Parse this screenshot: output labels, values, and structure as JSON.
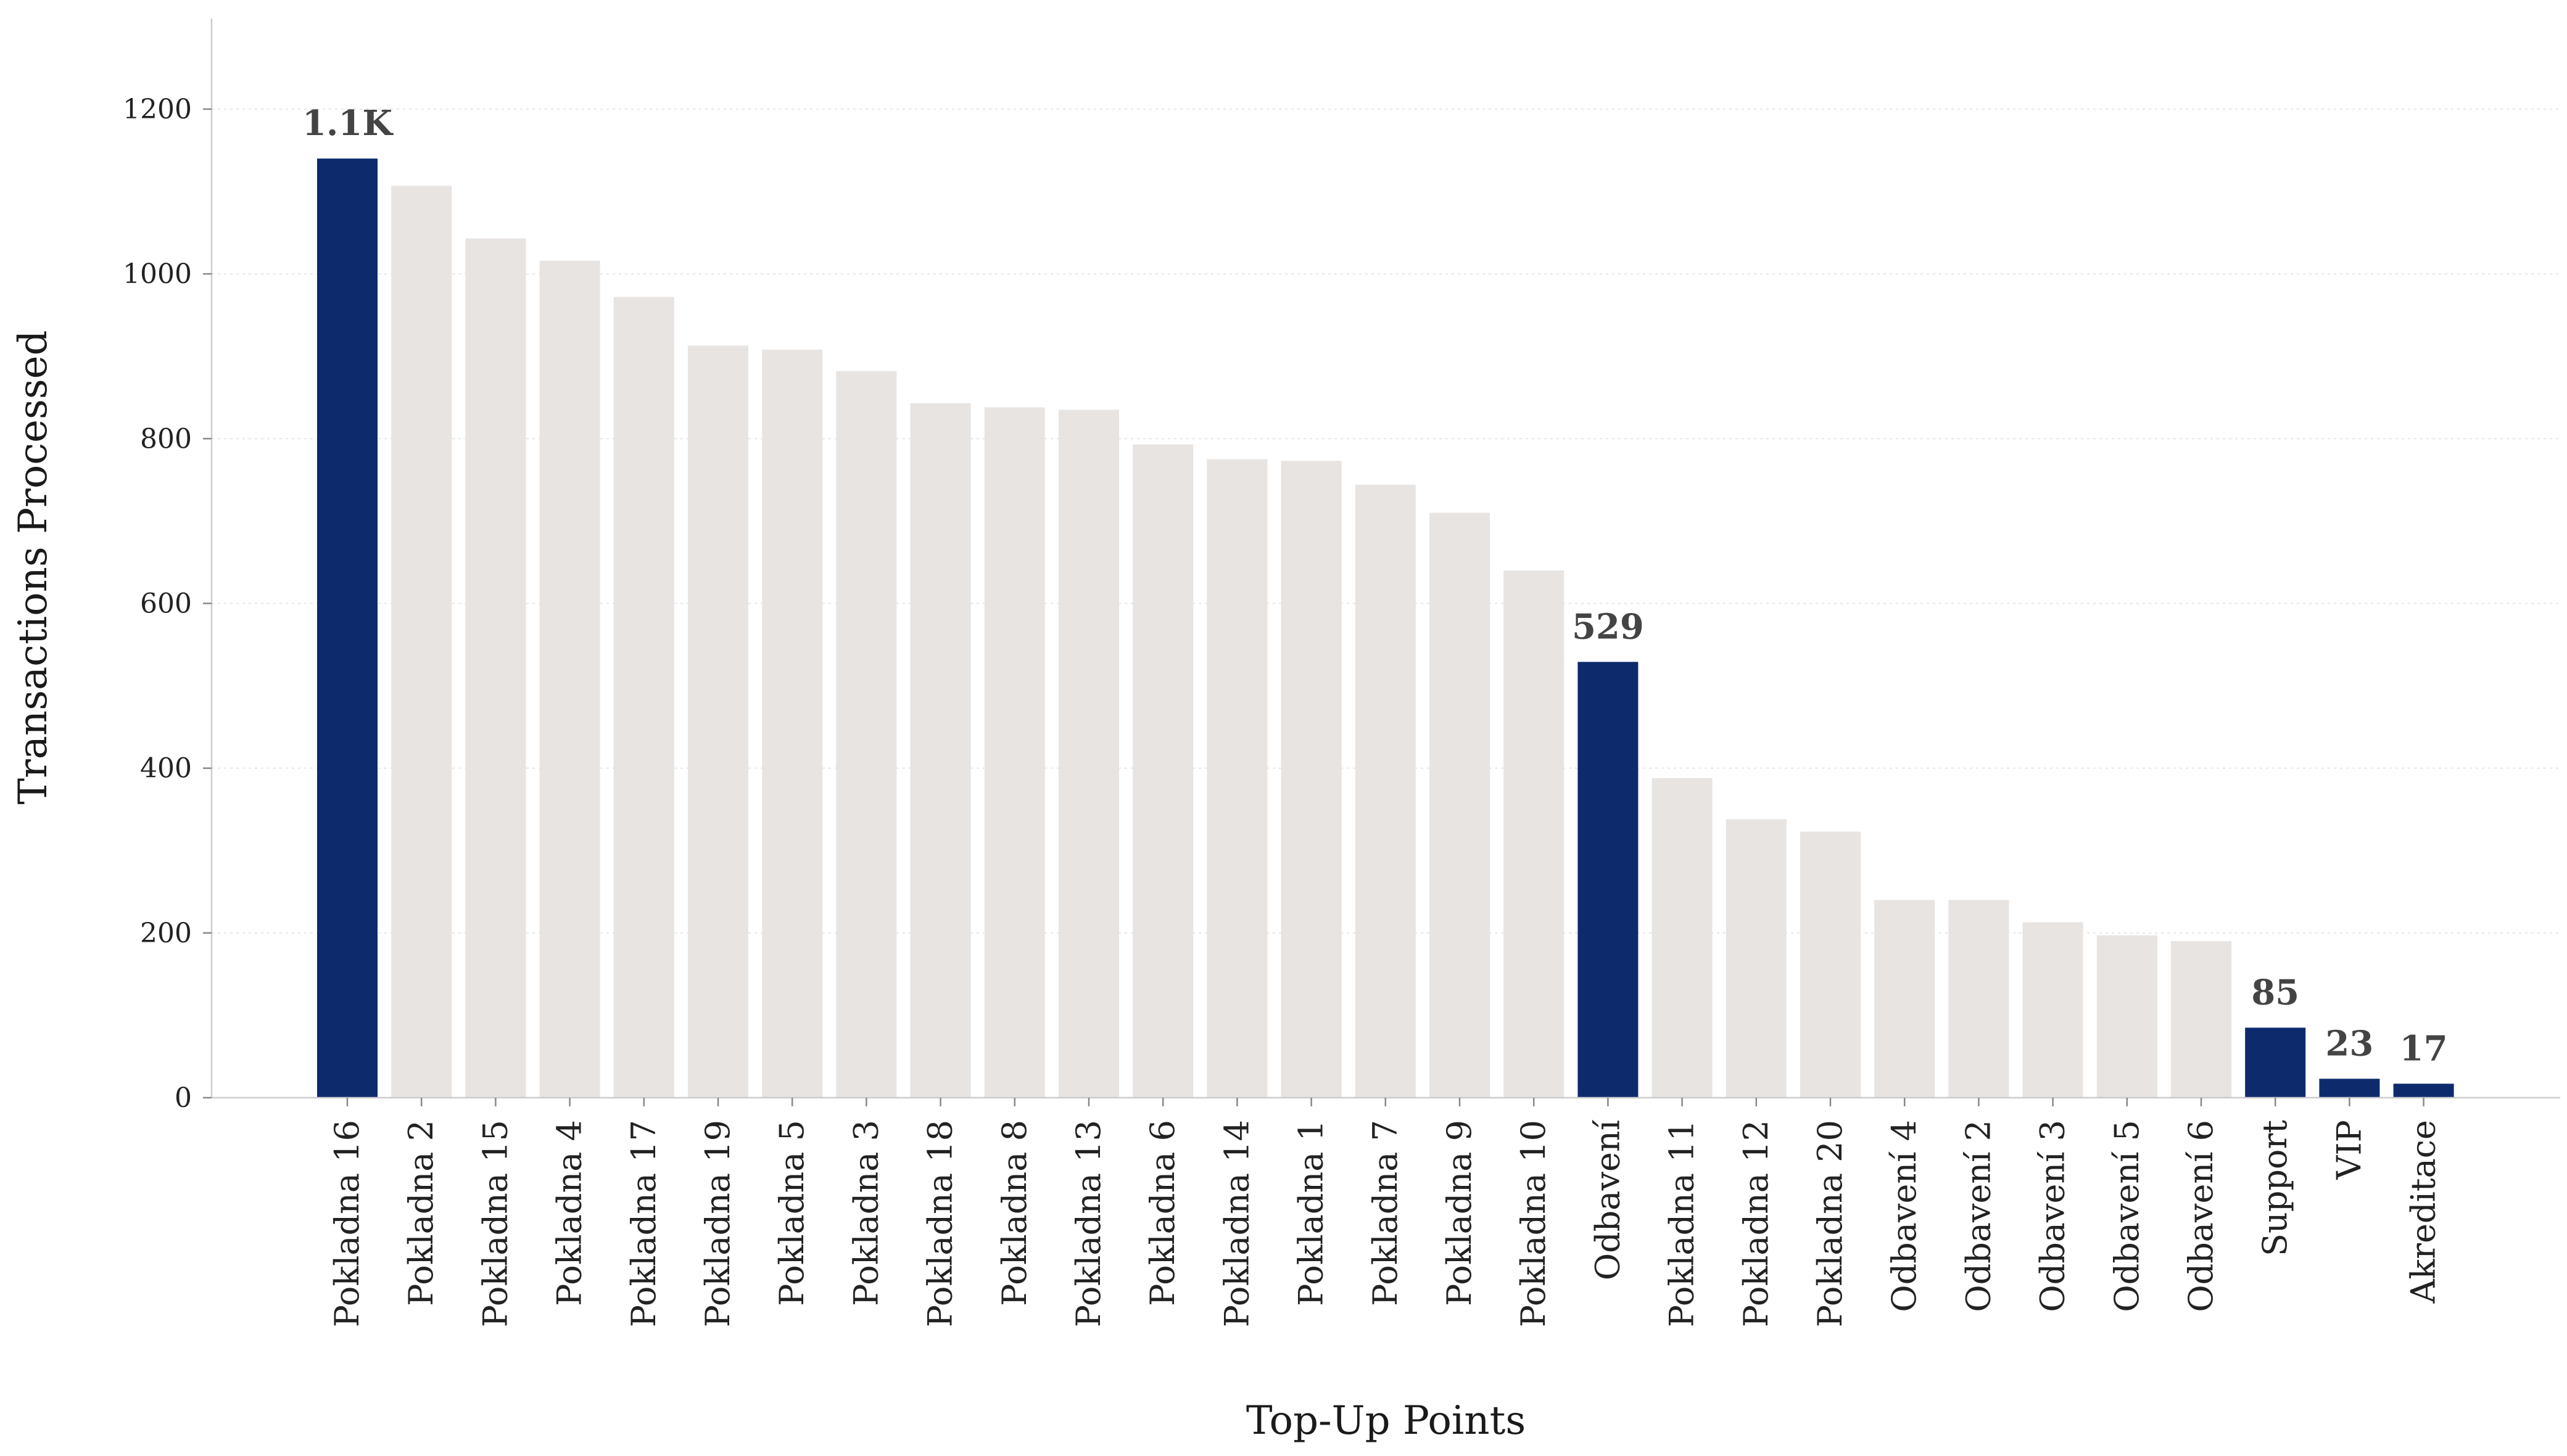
{
  "chart_data": {
    "type": "bar",
    "xlabel": "Top-Up Points",
    "ylabel": "Transactions Processed",
    "ylim": [
      0,
      1310
    ],
    "yticks": [
      0,
      200,
      400,
      600,
      800,
      1000,
      1200
    ],
    "grid": "y-horizontal-dotted",
    "categories": [
      "Pokladna 16",
      "Pokladna 2",
      "Pokladna 15",
      "Pokladna 4",
      "Pokladna 17",
      "Pokladna 19",
      "Pokladna 5",
      "Pokladna 3",
      "Pokladna 18",
      "Pokladna 8",
      "Pokladna 13",
      "Pokladna 6",
      "Pokladna 14",
      "Pokladna 1",
      "Pokladna 7",
      "Pokladna 9",
      "Pokladna 10",
      "Odbavení",
      "Pokladna 11",
      "Pokladna 12",
      "Pokladna 20",
      "Odbavení 4",
      "Odbavení 2",
      "Odbavení 3",
      "Odbavení 5",
      "Odbavení 6",
      "Support",
      "VIP",
      "Akreditace"
    ],
    "values": [
      1140,
      1107,
      1043,
      1016,
      972,
      913,
      908,
      882,
      843,
      838,
      835,
      793,
      775,
      773,
      744,
      710,
      640,
      529,
      388,
      338,
      323,
      240,
      240,
      213,
      197,
      190,
      85,
      23,
      17
    ],
    "highlighted": [
      true,
      false,
      false,
      false,
      false,
      false,
      false,
      false,
      false,
      false,
      false,
      false,
      false,
      false,
      false,
      false,
      false,
      true,
      false,
      false,
      false,
      false,
      false,
      false,
      false,
      false,
      true,
      true,
      true
    ],
    "data_labels": [
      "1.1K",
      "",
      "",
      "",
      "",
      "",
      "",
      "",
      "",
      "",
      "",
      "",
      "",
      "",
      "",
      "",
      "",
      "529",
      "",
      "",
      "",
      "",
      "",
      "",
      "",
      "",
      "85",
      "23",
      "17"
    ],
    "colors": {
      "highlight": "#0d2a6c",
      "base": "#e7e4e1",
      "axis": "#cccccc",
      "grid": "#e6e6e6"
    }
  }
}
